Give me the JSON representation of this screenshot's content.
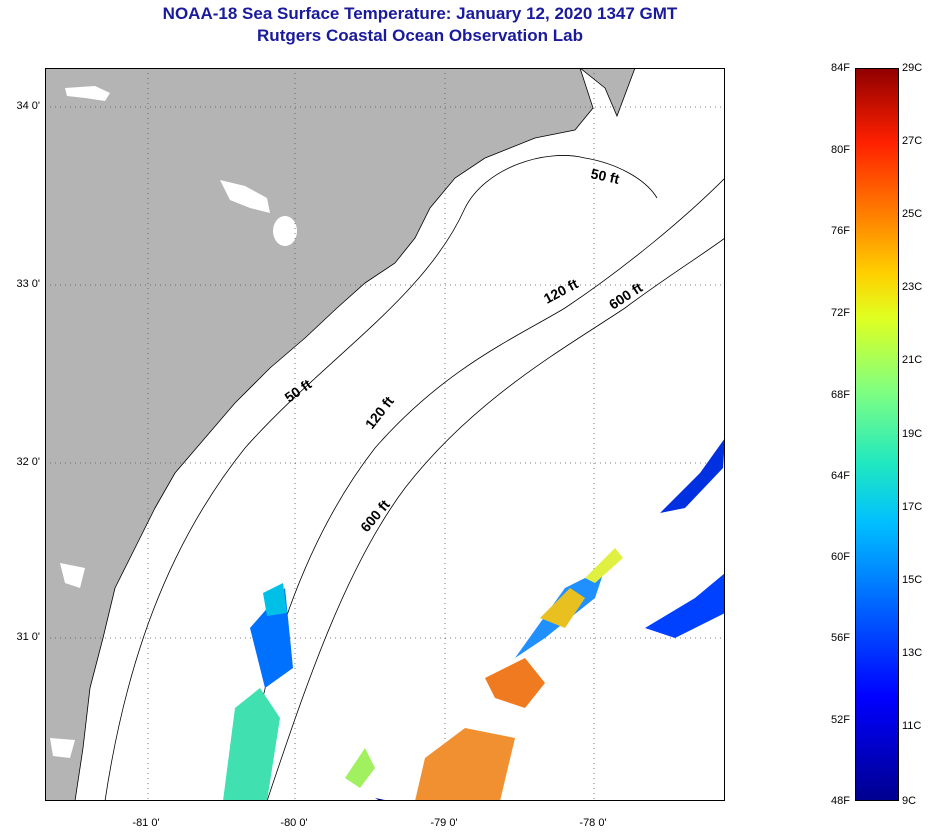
{
  "title": "NOAA-18 Sea Surface Temperature:  January 12, 2020 1347 GMT",
  "subtitle": "Rutgers Coastal Ocean Observation Lab",
  "lat_labels": [
    "34 0'",
    "33 0'",
    "32 0'",
    "31 0'"
  ],
  "lon_labels": [
    "-81 0'",
    "-80 0'",
    "-79 0'",
    "-78 0'"
  ],
  "contour_labels": [
    "50 ft",
    "120 ft",
    "600 ft",
    "50 ft",
    "120 ft",
    "600 ft"
  ],
  "colorbar": {
    "f_labels": [
      "84F",
      "80F",
      "76F",
      "72F",
      "68F",
      "64F",
      "60F",
      "56F",
      "52F",
      "48F"
    ],
    "c_labels": [
      "29C",
      "27C",
      "25C",
      "23C",
      "21C",
      "19C",
      "17C",
      "15C",
      "13C",
      "11C",
      "9C"
    ]
  },
  "colors": {
    "land": "#b4b4b4",
    "title": "#1a1a9c"
  }
}
